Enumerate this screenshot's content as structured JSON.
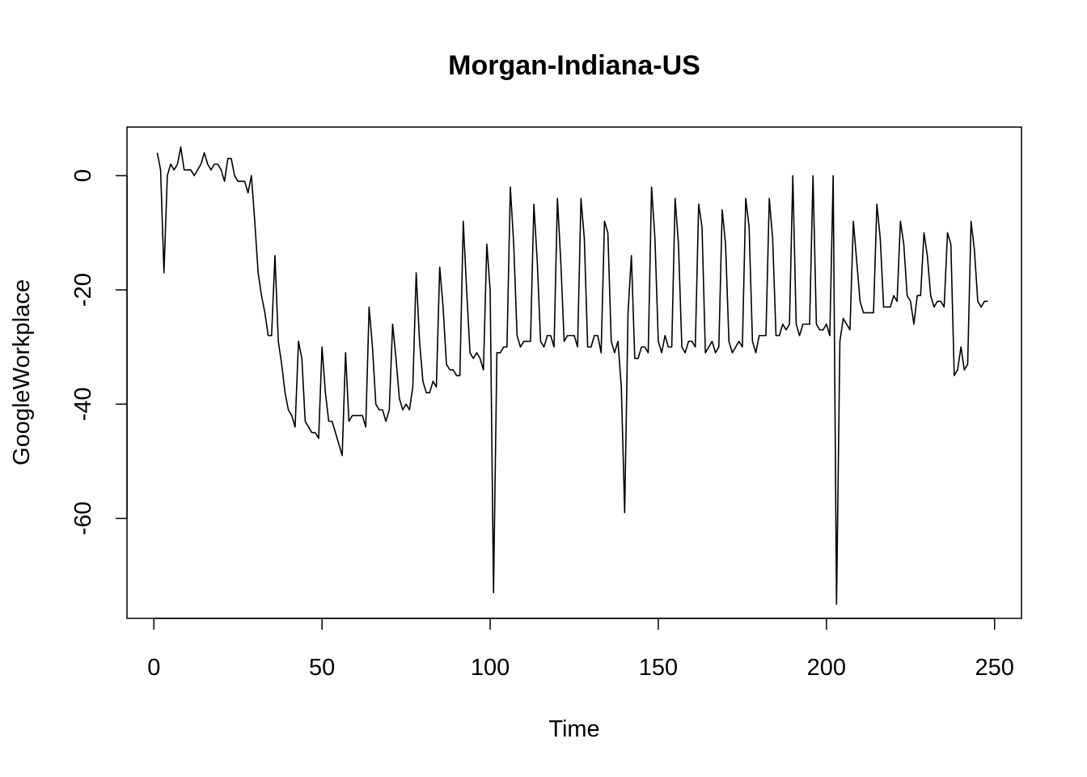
{
  "chart_data": {
    "type": "line",
    "title": "Morgan-Indiana-US",
    "xlabel": "Time",
    "ylabel": "GoogleWorkplace",
    "xlim": [
      -8,
      258
    ],
    "ylim": [
      -77.5,
      8.5
    ],
    "x_ticks": [
      0,
      50,
      100,
      150,
      200,
      250
    ],
    "y_ticks": [
      0,
      -20,
      -40,
      -60
    ],
    "x_tick_labels": [
      "0",
      "50",
      "100",
      "150",
      "200",
      "250"
    ],
    "y_tick_labels": [
      "0",
      "-20",
      "-40",
      "-60"
    ],
    "grid": false,
    "series": [
      {
        "x_start": 1,
        "values": [
          4,
          1,
          -17,
          0,
          2,
          1,
          2,
          5,
          1,
          1,
          1,
          0,
          1,
          2,
          4,
          2,
          1,
          2,
          2,
          1,
          -1,
          3,
          3,
          0,
          -1,
          -1,
          -1,
          -3,
          0,
          -8,
          -17,
          -21,
          -24,
          -28,
          -28,
          -14,
          -29,
          -33,
          -38,
          -41,
          -42,
          -44,
          -29,
          -32,
          -43,
          -44,
          -45,
          -45,
          -46,
          -30,
          -38,
          -43,
          -43,
          -45,
          -47,
          -49,
          -31,
          -43,
          -42,
          -42,
          -42,
          -42,
          -44,
          -23,
          -30,
          -40,
          -41,
          -41,
          -43,
          -41,
          -26,
          -32,
          -39,
          -41,
          -40,
          -41,
          -37,
          -17,
          -29,
          -36,
          -38,
          -38,
          -36,
          -37,
          -16,
          -23,
          -33,
          -34,
          -34,
          -35,
          -35,
          -8,
          -20,
          -31,
          -32,
          -31,
          -32,
          -34,
          -12,
          -20,
          -73,
          -31,
          -31,
          -30,
          -30,
          -2,
          -12,
          -28,
          -30,
          -29,
          -29,
          -29,
          -5,
          -15,
          -29,
          -30,
          -28,
          -28,
          -30,
          -4,
          -15,
          -29,
          -28,
          -28,
          -28,
          -30,
          -4,
          -11,
          -30,
          -30,
          -28,
          -28,
          -31,
          -8,
          -10,
          -29,
          -31,
          -29,
          -37,
          -59,
          -24,
          -14,
          -32,
          -32,
          -30,
          -30,
          -31,
          -2,
          -11,
          -29,
          -31,
          -28,
          -30,
          -30,
          -4,
          -12,
          -30,
          -31,
          -29,
          -29,
          -30,
          -5,
          -9,
          -31,
          -30,
          -29,
          -31,
          -30,
          -6,
          -12,
          -29,
          -31,
          -30,
          -29,
          -30,
          -4,
          -9,
          -29,
          -31,
          -28,
          -28,
          -28,
          -4,
          -11,
          -28,
          -28,
          -26,
          -27,
          -26,
          0,
          -26,
          -28,
          -26,
          -26,
          -26,
          0,
          -26,
          -27,
          -27,
          -26,
          -28,
          0,
          -75,
          -29,
          -25,
          -26,
          -27,
          -8,
          -15,
          -22,
          -24,
          -24,
          -24,
          -24,
          -5,
          -11,
          -23,
          -23,
          -23,
          -21,
          -22,
          -8,
          -12,
          -21,
          -22,
          -26,
          -21,
          -21,
          -10,
          -14,
          -21,
          -23,
          -22,
          -22,
          -23,
          -10,
          -12,
          -35,
          -34,
          -30,
          -34,
          -33,
          -8,
          -13,
          -22,
          -23,
          -22,
          -22
        ]
      }
    ]
  }
}
